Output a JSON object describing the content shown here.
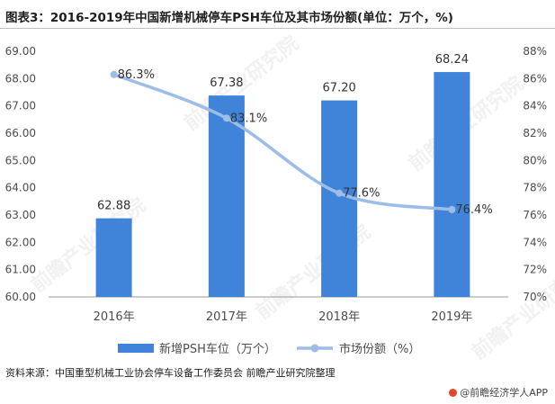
{
  "title": "图表3：2016-2019年中国新增机械停车PSH车位及其市场份额(单位：万个，%)",
  "source": "资料来源：中国重型机械工业协会停车设备工作委员会 前瞻产业研究院整理",
  "credit": "@前瞻经济学人APP",
  "watermark": "前瞻产业研究院",
  "colors": {
    "bar": "#3f84d8",
    "line": "#9dbde8",
    "axis": "#999999",
    "text": "#4d4d4d"
  },
  "chart_data": {
    "type": "bar+line",
    "categories": [
      "2016年",
      "2017年",
      "2018年",
      "2019年"
    ],
    "series": [
      {
        "name": "新增PSH车位（万个）",
        "type": "bar",
        "axis": "left",
        "values": [
          62.88,
          67.38,
          67.2,
          68.24
        ],
        "labels": [
          "62.88",
          "67.38",
          "67.20",
          "68.24"
        ]
      },
      {
        "name": "市场份额（%）",
        "type": "line",
        "axis": "right",
        "values": [
          86.3,
          83.1,
          77.6,
          76.4
        ],
        "labels": [
          "86.3%",
          "83.1%",
          "77.6%",
          "76.4%"
        ]
      }
    ],
    "left_axis": {
      "min": 60,
      "max": 69,
      "step": 1,
      "ticks": [
        "60.00",
        "61.00",
        "62.00",
        "63.00",
        "64.00",
        "65.00",
        "66.00",
        "67.00",
        "68.00",
        "69.00"
      ]
    },
    "right_axis": {
      "min": 70,
      "max": 88,
      "step": 2,
      "ticks": [
        "70%",
        "72%",
        "74%",
        "76%",
        "78%",
        "80%",
        "82%",
        "84%",
        "86%",
        "88%"
      ]
    },
    "grid": false,
    "legend_position": "bottom-center"
  }
}
